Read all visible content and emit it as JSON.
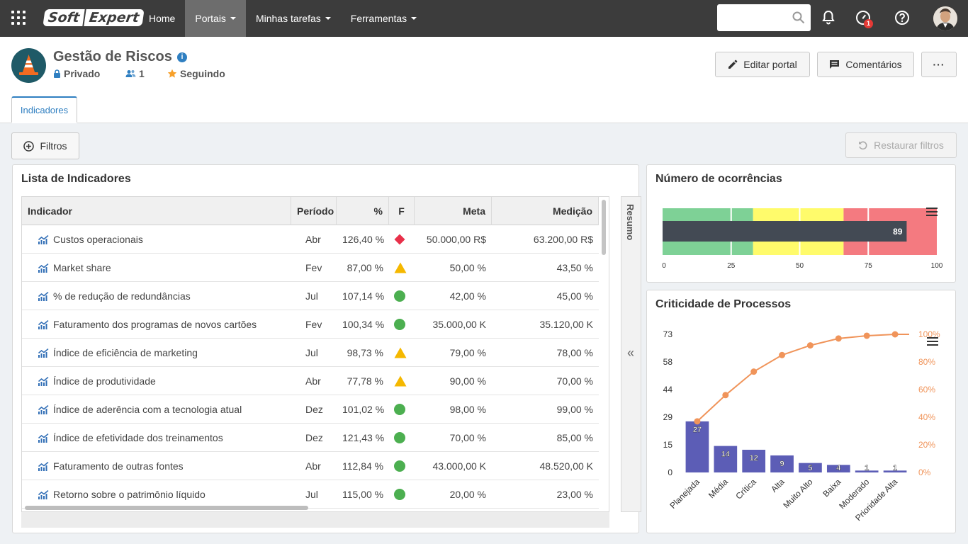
{
  "topbar": {
    "logo_part1": "Soft",
    "logo_part2": "Expert",
    "nav": [
      {
        "label": "Home",
        "dropdown": false,
        "active": false
      },
      {
        "label": "Portais",
        "dropdown": true,
        "active": true
      },
      {
        "label": "Minhas tarefas",
        "dropdown": true,
        "active": false
      },
      {
        "label": "Ferramentas",
        "dropdown": true,
        "active": false
      }
    ],
    "notification_badge": "1"
  },
  "header": {
    "title": "Gestão de Riscos",
    "privacy": "Privado",
    "members": "1",
    "following": "Seguindo",
    "edit_button": "Editar portal",
    "comments_button": "Comentários",
    "more_button": "···",
    "tab": "Indicadores"
  },
  "filters": {
    "filter_button": "Filtros",
    "restore_button": "Restaurar filtros"
  },
  "indicators": {
    "title": "Lista de Indicadores",
    "side_label": "Resumo",
    "columns": {
      "name": "Indicador",
      "period": "Período",
      "pct": "%",
      "flag": "F",
      "goal": "Meta",
      "measure": "Medição"
    },
    "rows": [
      {
        "name": "Custos operacionais",
        "period": "Abr",
        "pct": "126,40 %",
        "flag": "red-diamond",
        "goal": "50.000,00 R$",
        "measure": "63.200,00 R$"
      },
      {
        "name": "Market share",
        "period": "Fev",
        "pct": "87,00 %",
        "flag": "yellow-triangle",
        "goal": "50,00 %",
        "measure": "43,50 %"
      },
      {
        "name": "% de redução de redundâncias",
        "period": "Jul",
        "pct": "107,14 %",
        "flag": "green-circle",
        "goal": "42,00 %",
        "measure": "45,00 %"
      },
      {
        "name": "Faturamento dos programas de novos cartões",
        "period": "Fev",
        "pct": "100,34 %",
        "flag": "green-circle",
        "goal": "35.000,00 K",
        "measure": "35.120,00 K"
      },
      {
        "name": "Índice de eficiência de marketing",
        "period": "Jul",
        "pct": "98,73 %",
        "flag": "yellow-triangle",
        "goal": "79,00 %",
        "measure": "78,00 %"
      },
      {
        "name": "Índice de produtividade",
        "period": "Abr",
        "pct": "77,78 %",
        "flag": "yellow-triangle",
        "goal": "90,00 %",
        "measure": "70,00 %"
      },
      {
        "name": "Índice de aderência com a tecnologia atual",
        "period": "Dez",
        "pct": "101,02 %",
        "flag": "green-circle",
        "goal": "98,00 %",
        "measure": "99,00 %"
      },
      {
        "name": "Índice de efetividade dos treinamentos",
        "period": "Dez",
        "pct": "121,43 %",
        "flag": "green-circle",
        "goal": "70,00 %",
        "measure": "85,00 %"
      },
      {
        "name": "Faturamento de outras fontes",
        "period": "Abr",
        "pct": "112,84 %",
        "flag": "green-circle",
        "goal": "43.000,00 K",
        "measure": "48.520,00 K"
      },
      {
        "name": "Retorno sobre o patrimônio líquido",
        "period": "Jul",
        "pct": "115,00 %",
        "flag": "green-circle",
        "goal": "20,00 %",
        "measure": "23,00 %"
      }
    ]
  },
  "colors": {
    "red": "#e8304a",
    "yellow": "#f5b800",
    "green": "#4caf50",
    "bullet_green": "#7ed196",
    "bullet_yellow": "#fffb6b",
    "bullet_red": "#f47a80",
    "bullet_bar": "#434a54",
    "bar": "#5c5db6",
    "pareto_line": "#f0945a"
  },
  "chart_data": [
    {
      "type": "bar",
      "title": "Número de ocorrências",
      "variant": "bullet",
      "values": [
        89
      ],
      "ylim": [
        0,
        100
      ],
      "ticks": [
        "0",
        "25",
        "50",
        "75",
        "100"
      ],
      "bands": [
        {
          "from": 0,
          "to": 33,
          "color": "green"
        },
        {
          "from": 33,
          "to": 66,
          "color": "yellow"
        },
        {
          "from": 66,
          "to": 100,
          "color": "red"
        }
      ],
      "value_label": "89"
    },
    {
      "type": "bar",
      "title": "Criticidade de Processos",
      "variant": "pareto",
      "categories": [
        "Planejada",
        "Média",
        "Crítica",
        "Alta",
        "Muito Alto",
        "Baixa",
        "Moderado",
        "Prioridade Alta"
      ],
      "values": [
        27,
        14,
        12,
        9,
        5,
        4,
        1,
        1
      ],
      "cumulative_pct": [
        37,
        56,
        73,
        85,
        92,
        97,
        99,
        100
      ],
      "ylim": [
        0,
        73
      ],
      "y_ticks": [
        "0",
        "15",
        "29",
        "44",
        "58",
        "73"
      ],
      "y2_ticks": [
        "0%",
        "20%",
        "40%",
        "60%",
        "80%",
        "100%"
      ]
    }
  ]
}
